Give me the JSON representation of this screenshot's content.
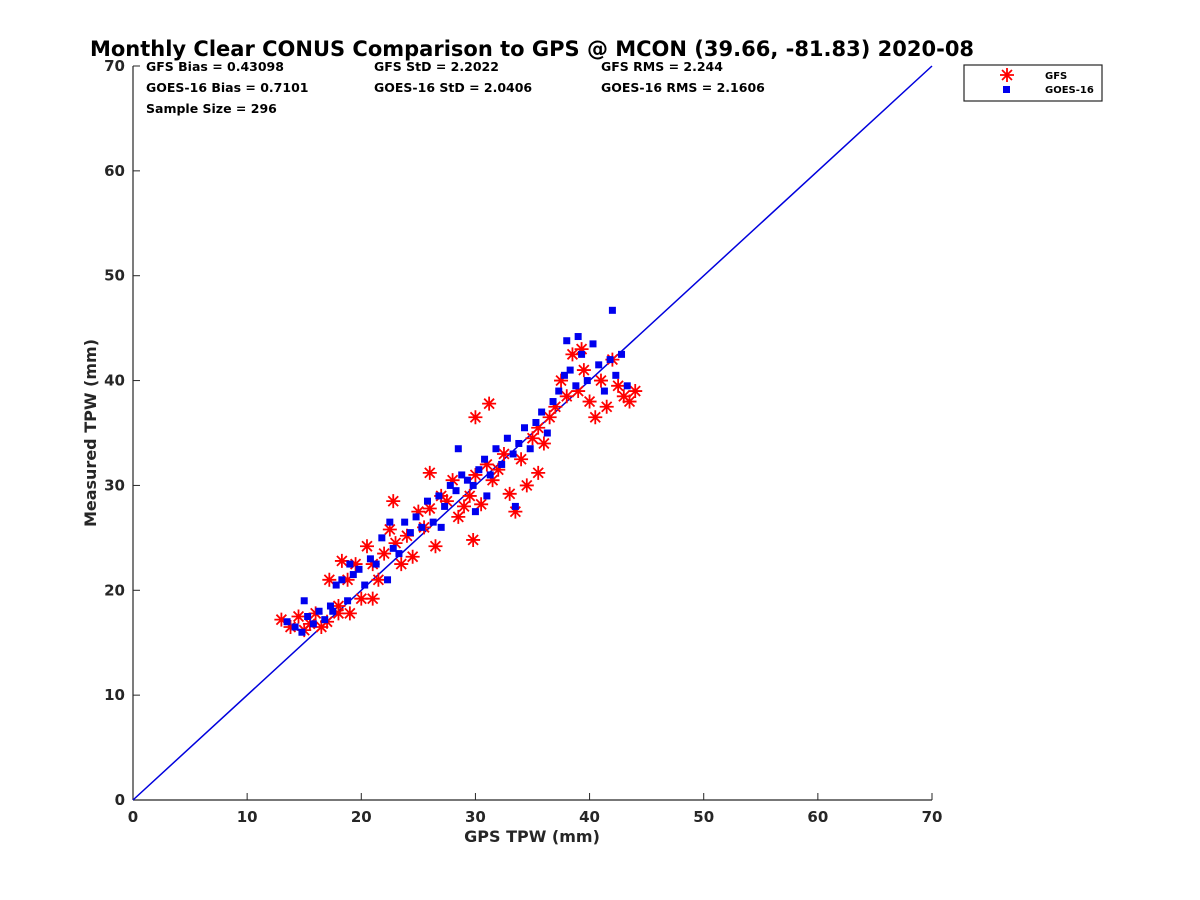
{
  "chart_data": {
    "type": "scatter",
    "title": "Monthly Clear CONUS Comparison to GPS @ MCON (39.66, -81.83) 2020-08",
    "xlabel": "GPS TPW (mm)",
    "ylabel": "Measured TPW (mm)",
    "xlim": [
      0,
      70
    ],
    "ylim": [
      0,
      70
    ],
    "xticks": [
      0,
      10,
      20,
      30,
      40,
      50,
      60,
      70
    ],
    "yticks": [
      0,
      10,
      20,
      30,
      40,
      50,
      60,
      70
    ],
    "grid": false,
    "legend_position": "top-right",
    "reference_line": {
      "x": [
        0,
        70
      ],
      "y": [
        0,
        70
      ],
      "color": "#0000dd"
    },
    "stats": {
      "gfs_bias": "GFS Bias = 0.43098",
      "gfs_std": "GFS StD = 2.2022",
      "gfs_rms": "GFS RMS = 2.244",
      "goes_bias": "GOES-16 Bias = 0.7101",
      "goes_std": "GOES-16 StD = 2.0406",
      "goes_rms": "GOES-16 RMS = 2.1606",
      "sample_size": "Sample Size = 296"
    },
    "series": [
      {
        "name": "GFS",
        "marker": "asterisk",
        "color": "#ff0000",
        "x": [
          13.0,
          13.8,
          14.5,
          15.0,
          15.5,
          16.0,
          16.5,
          17.0,
          17.2,
          18.0,
          18.3,
          18.8,
          19.0,
          19.5,
          20.0,
          20.5,
          21.0,
          21.0,
          21.5,
          22.0,
          22.5,
          23.0,
          23.5,
          24.0,
          24.5,
          25.0,
          25.5,
          26.0,
          26.5,
          27.0,
          27.5,
          28.0,
          28.5,
          29.0,
          29.5,
          30.0,
          30.5,
          31.0,
          31.5,
          32.0,
          32.5,
          33.0,
          33.5,
          34.0,
          34.5,
          35.0,
          35.5,
          36.0,
          36.5,
          37.0,
          37.5,
          38.0,
          38.5,
          39.0,
          39.5,
          40.0,
          40.5,
          41.0,
          41.5,
          42.0,
          42.5,
          43.0,
          43.5,
          44.0,
          26.0,
          29.8,
          30.0,
          22.8,
          18.0,
          35.5,
          39.3,
          31.2
        ],
        "y": [
          17.2,
          16.5,
          17.5,
          16.2,
          16.8,
          17.8,
          16.5,
          17.0,
          21.0,
          18.5,
          22.8,
          21.0,
          17.8,
          22.5,
          19.2,
          24.2,
          19.2,
          22.5,
          21.0,
          23.5,
          25.8,
          24.5,
          22.5,
          25.2,
          23.2,
          27.5,
          26.0,
          27.8,
          24.2,
          29.0,
          28.5,
          30.5,
          27.0,
          28.0,
          29.0,
          31.0,
          28.2,
          32.0,
          30.5,
          31.5,
          33.0,
          29.2,
          27.5,
          32.5,
          30.0,
          34.5,
          35.5,
          34.0,
          36.5,
          37.5,
          40.0,
          38.5,
          42.5,
          39.0,
          41.0,
          38.0,
          36.5,
          40.0,
          37.5,
          42.0,
          39.5,
          38.5,
          38.0,
          39.0,
          31.2,
          24.8,
          36.5,
          28.5,
          17.8,
          31.2,
          43.0,
          37.8
        ]
      },
      {
        "name": "GOES-16",
        "marker": "square",
        "color": "#0000ee",
        "x": [
          13.5,
          14.2,
          14.8,
          15.3,
          15.8,
          16.3,
          16.8,
          17.3,
          17.8,
          18.3,
          18.8,
          19.3,
          19.8,
          20.3,
          20.8,
          21.3,
          21.8,
          22.3,
          22.8,
          23.3,
          23.8,
          24.3,
          24.8,
          25.3,
          25.8,
          26.3,
          26.8,
          27.3,
          27.8,
          28.3,
          28.8,
          29.3,
          29.8,
          30.3,
          30.8,
          31.3,
          31.8,
          32.3,
          32.8,
          33.3,
          33.8,
          34.3,
          34.8,
          35.3,
          35.8,
          36.3,
          36.8,
          37.3,
          37.8,
          38.3,
          38.8,
          39.3,
          39.8,
          40.3,
          40.8,
          41.3,
          41.8,
          42.3,
          42.8,
          43.3,
          42.0,
          39.0,
          38.0,
          28.5,
          27.0,
          30.0,
          33.5,
          22.5,
          19.0,
          15.0,
          17.5,
          31.0
        ],
        "y": [
          17.0,
          16.5,
          16.0,
          17.5,
          16.8,
          18.0,
          17.2,
          18.5,
          20.5,
          21.0,
          19.0,
          21.5,
          22.0,
          20.5,
          23.0,
          22.5,
          25.0,
          21.0,
          24.0,
          23.5,
          26.5,
          25.5,
          27.0,
          26.0,
          28.5,
          26.5,
          29.0,
          28.0,
          30.0,
          29.5,
          31.0,
          30.5,
          30.0,
          31.5,
          32.5,
          31.0,
          33.5,
          32.0,
          34.5,
          33.0,
          34.0,
          35.5,
          33.5,
          36.0,
          37.0,
          35.0,
          38.0,
          39.0,
          40.5,
          41.0,
          39.5,
          42.5,
          40.0,
          43.5,
          41.5,
          39.0,
          42.0,
          40.5,
          42.5,
          39.5,
          46.7,
          44.2,
          43.8,
          33.5,
          26.0,
          27.5,
          28.0,
          26.5,
          22.5,
          19.0,
          18.0,
          29.0
        ]
      }
    ]
  }
}
